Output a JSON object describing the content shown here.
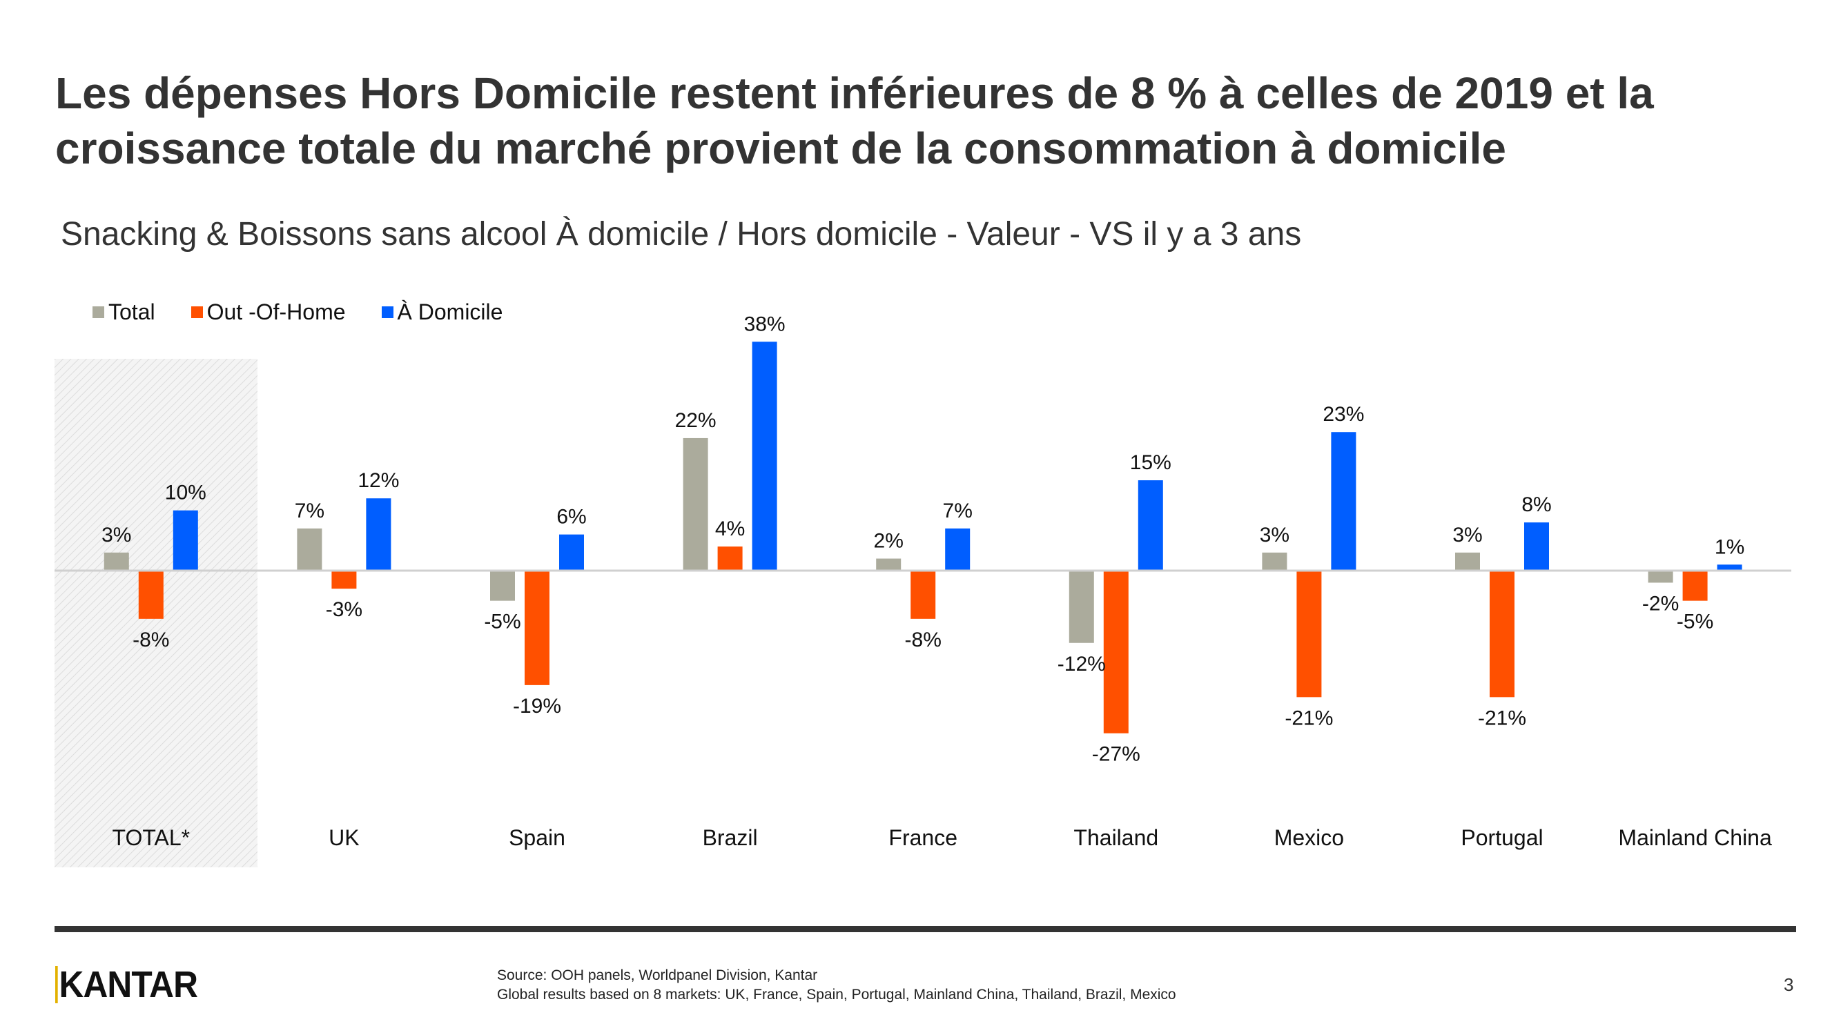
{
  "title": "Les dépenses Hors Domicile restent inférieures de 8 % à celles de 2019 et la croissance totale du marché provient de la consommation à domicile",
  "subtitle": "Snacking & Boissons sans alcool À domicile / Hors domicile - Valeur - VS il y a 3 ans",
  "chart_data": {
    "type": "bar",
    "title": "Snacking & Boissons sans alcool À domicile / Hors domicile - Valeur - VS il y a 3 ans",
    "xlabel": "",
    "ylabel": "",
    "ylim": [
      -30,
      40
    ],
    "grid": false,
    "legend_position": "top-left",
    "highlighted_category": "TOTAL*",
    "categories": [
      "TOTAL*",
      "UK",
      "Spain",
      "Brazil",
      "France",
      "Thailand",
      "Mexico",
      "Portugal",
      "Mainland China"
    ],
    "series": [
      {
        "name": "Total",
        "color": "#ABAB9C",
        "values": [
          3,
          7,
          -5,
          22,
          2,
          -12,
          3,
          3,
          -2
        ]
      },
      {
        "name": "Out -Of-Home",
        "color": "#FF5000",
        "values": [
          -8,
          -3,
          -19,
          4,
          -8,
          -27,
          -21,
          -21,
          -5
        ]
      },
      {
        "name": "À Domicile",
        "color": "#005EFF",
        "values": [
          10,
          12,
          6,
          38,
          7,
          15,
          23,
          8,
          1
        ]
      }
    ]
  },
  "footer": {
    "logo": "KANTAR",
    "source_line1": "Source: OOH panels, Worldpanel Division, Kantar",
    "source_line2": "Global results based on 8 markets: UK, France, Spain, Portugal, Mainland China, Thailand, Brazil, Mexico",
    "page_number": "3"
  }
}
